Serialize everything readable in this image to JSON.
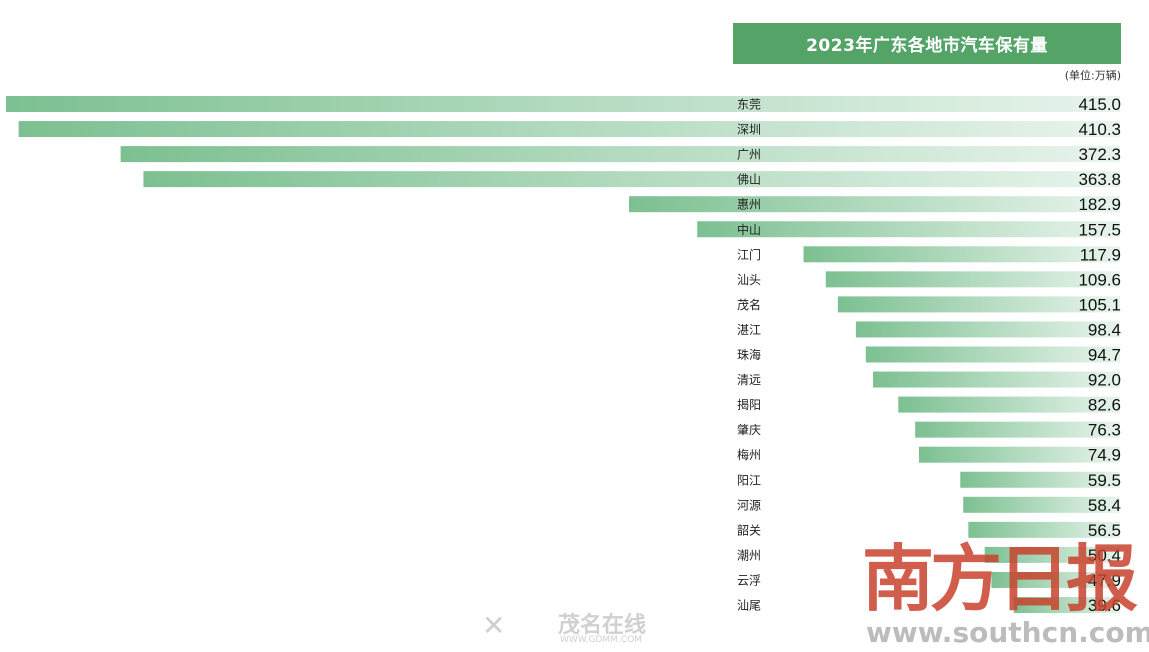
{
  "chart_data": {
    "type": "bar",
    "orientation": "horizontal",
    "title": "2023年广东各地市汽车保有量",
    "unit_note": "(单位:万辆)",
    "categories": [
      "东莞",
      "深圳",
      "广州",
      "佛山",
      "惠州",
      "中山",
      "江门",
      "汕头",
      "茂名",
      "湛江",
      "珠海",
      "清远",
      "揭阳",
      "肇庆",
      "梅州",
      "阳江",
      "河源",
      "韶关",
      "潮州",
      "云浮",
      "汕尾"
    ],
    "values": [
      415.0,
      410.3,
      372.3,
      363.8,
      182.9,
      157.5,
      117.9,
      109.6,
      105.1,
      98.4,
      94.7,
      92.0,
      82.6,
      76.3,
      74.9,
      59.5,
      58.4,
      56.5,
      50.4,
      47.9,
      39.6
    ],
    "value_labels": [
      "415.0",
      "410.3",
      "372.3",
      "363.8",
      "182.9",
      "157.5",
      "117.9",
      "109.6",
      "105.1",
      "98.4",
      "94.7",
      "92.0",
      "82.6",
      "76.3",
      "74.9",
      "59.5",
      "58.4",
      "56.5",
      "50.4",
      "47.9",
      "39.6"
    ],
    "colors": {
      "bar_dark": "#7cc091",
      "bar_light": "#e8f4ec",
      "title_bg": "#54a468"
    }
  },
  "watermarks": {
    "logo": "南方日报",
    "url": "www.southcn.com",
    "site_mark": "✕",
    "site_name": "茂名在线",
    "site_url": "WWW.GDMM.COM"
  }
}
